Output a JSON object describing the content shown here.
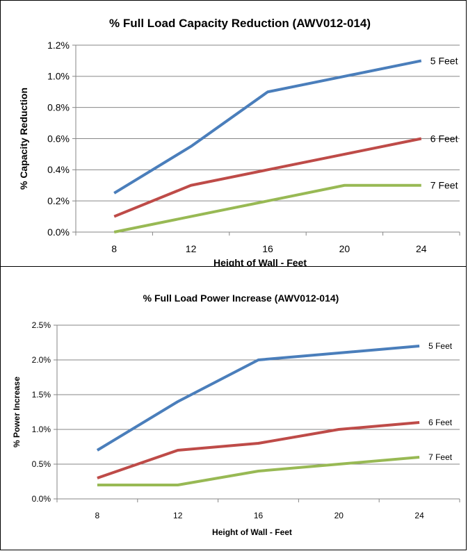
{
  "chart_data": [
    {
      "type": "line",
      "title": "% Full Load Capacity Reduction (AWV012-014)",
      "xlabel": "Height of Wall - Feet",
      "ylabel": "% Capacity Reduction",
      "x": [
        8,
        12,
        16,
        20,
        24
      ],
      "ylim": [
        0,
        1.2
      ],
      "yticks": [
        "0.0%",
        "0.2%",
        "0.4%",
        "0.6%",
        "0.8%",
        "1.0%",
        "1.2%"
      ],
      "grid": true,
      "legend": "labels at line ends",
      "series": [
        {
          "name": "5 Feet",
          "color": "#4a7ebb",
          "values": [
            0.25,
            0.55,
            0.9,
            1.0,
            1.1
          ]
        },
        {
          "name": "6 Feet",
          "color": "#be4b48",
          "values": [
            0.1,
            0.3,
            0.4,
            0.5,
            0.6
          ]
        },
        {
          "name": "7 Feet",
          "color": "#98b954",
          "values": [
            0.0,
            0.1,
            0.2,
            0.3,
            0.3
          ]
        }
      ]
    },
    {
      "type": "line",
      "title": "% Full Load Power Increase (AWV012-014)",
      "xlabel": "Height of Wall - Feet",
      "ylabel": "% Power Increase",
      "x": [
        8,
        12,
        16,
        20,
        24
      ],
      "ylim": [
        0,
        2.5
      ],
      "yticks": [
        "0.0%",
        "0.5%",
        "1.0%",
        "1.5%",
        "2.0%",
        "2.5%"
      ],
      "grid": true,
      "legend": "labels at line ends",
      "series": [
        {
          "name": "5 Feet",
          "color": "#4a7ebb",
          "values": [
            0.7,
            1.4,
            2.0,
            2.1,
            2.2
          ]
        },
        {
          "name": "6 Feet",
          "color": "#be4b48",
          "values": [
            0.3,
            0.7,
            0.8,
            1.0,
            1.1
          ]
        },
        {
          "name": "7 Feet",
          "color": "#98b954",
          "values": [
            0.2,
            0.2,
            0.4,
            0.5,
            0.6
          ]
        }
      ]
    }
  ]
}
